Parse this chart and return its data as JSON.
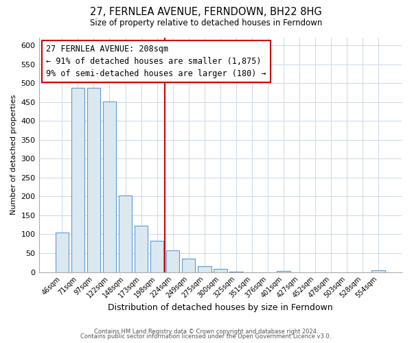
{
  "title": "27, FERNLEA AVENUE, FERNDOWN, BH22 8HG",
  "subtitle": "Size of property relative to detached houses in Ferndown",
  "xlabel": "Distribution of detached houses by size in Ferndown",
  "ylabel": "Number of detached properties",
  "bar_labels": [
    "46sqm",
    "71sqm",
    "97sqm",
    "122sqm",
    "148sqm",
    "173sqm",
    "198sqm",
    "224sqm",
    "249sqm",
    "275sqm",
    "300sqm",
    "325sqm",
    "351sqm",
    "376sqm",
    "401sqm",
    "427sqm",
    "452sqm",
    "478sqm",
    "503sqm",
    "528sqm",
    "554sqm"
  ],
  "bar_heights": [
    105,
    488,
    488,
    452,
    202,
    122,
    83,
    57,
    36,
    16,
    9,
    1,
    0,
    0,
    2,
    0,
    0,
    0,
    0,
    0,
    5
  ],
  "bar_fill_color": "#dce8f0",
  "bar_edge_color": "#5b9bd5",
  "vline_x": 6.5,
  "vline_color": "#cc0000",
  "annotation_title": "27 FERNLEA AVENUE: 208sqm",
  "annotation_line1": "← 91% of detached houses are smaller (1,875)",
  "annotation_line2": "9% of semi-detached houses are larger (180) →",
  "annotation_box_color": "#ffffff",
  "annotation_box_edge": "#cc0000",
  "ylim": [
    0,
    620
  ],
  "yticks": [
    0,
    50,
    100,
    150,
    200,
    250,
    300,
    350,
    400,
    450,
    500,
    550,
    600
  ],
  "footer1": "Contains HM Land Registry data © Crown copyright and database right 2024.",
  "footer2": "Contains public sector information licensed under the Open Government Licence v3.0.",
  "fig_bg": "#ffffff",
  "grid_color": "#c8d8e8"
}
